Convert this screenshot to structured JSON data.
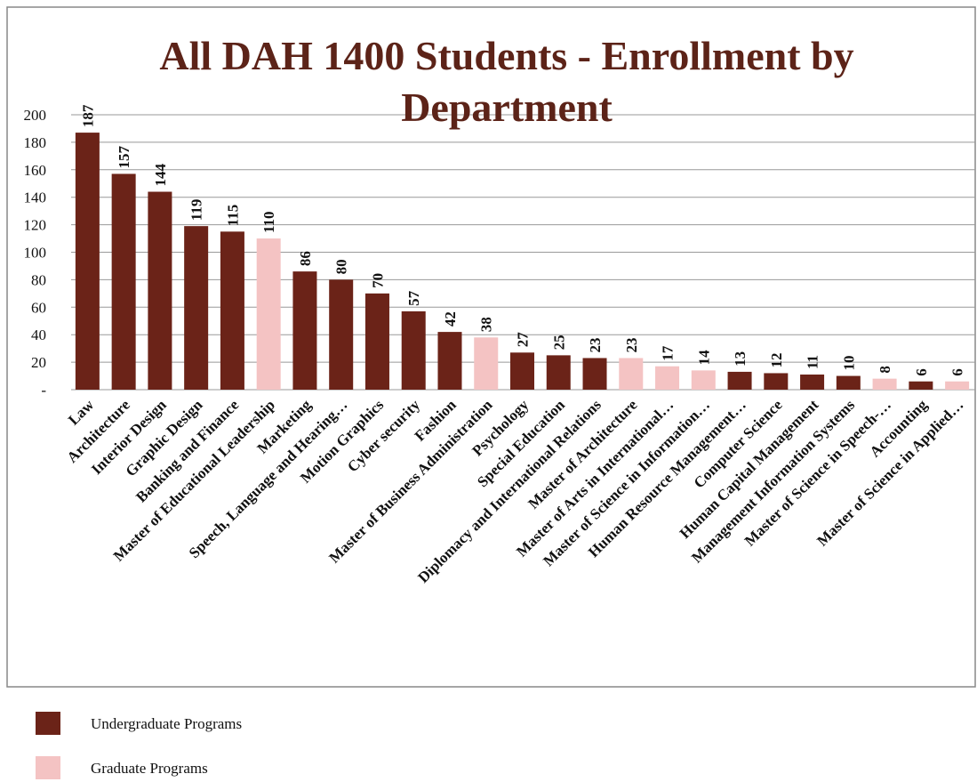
{
  "chart_data": {
    "type": "bar",
    "title": "All DAH 1400 Students - Enrollment by Department",
    "categories": [
      "Law",
      "Architecture",
      "Interior Design",
      "Graphic Design",
      "Banking and Finance",
      "Master of Educational Leadership",
      "Marketing",
      "Speech, Language and Hearing…",
      "Motion Graphics",
      "Cyber security",
      "Fashion",
      "Master of Business Administration",
      "Psychology",
      "Special Education",
      "Diplomacy and International Relations",
      "Master of Architecture",
      "Master of Arts in International…",
      "Master of Science in Information…",
      "Human Resource Management…",
      "Computer Science",
      "Human Capital Management",
      "Management Information Systems",
      "Master of Science in Speech-…",
      "Accounting",
      "Master of Science in Applied…"
    ],
    "series": [
      {
        "name": "Undergraduate Programs",
        "color": "#6b2318",
        "values": [
          187,
          157,
          144,
          119,
          115,
          null,
          86,
          80,
          70,
          57,
          42,
          null,
          27,
          25,
          23,
          null,
          null,
          null,
          13,
          12,
          11,
          10,
          null,
          6,
          null
        ]
      },
      {
        "name": "Graduate Programs",
        "color": "#f4c3c3",
        "values": [
          null,
          null,
          null,
          null,
          null,
          110,
          null,
          null,
          null,
          null,
          null,
          38,
          null,
          null,
          null,
          23,
          17,
          14,
          null,
          null,
          null,
          null,
          8,
          null,
          6
        ]
      }
    ],
    "ylim": [
      0,
      200
    ],
    "yticks": [
      {
        "value": 0,
        "label": "-"
      },
      20,
      40,
      60,
      80,
      100,
      120,
      140,
      160,
      180,
      200
    ],
    "grid": true
  }
}
